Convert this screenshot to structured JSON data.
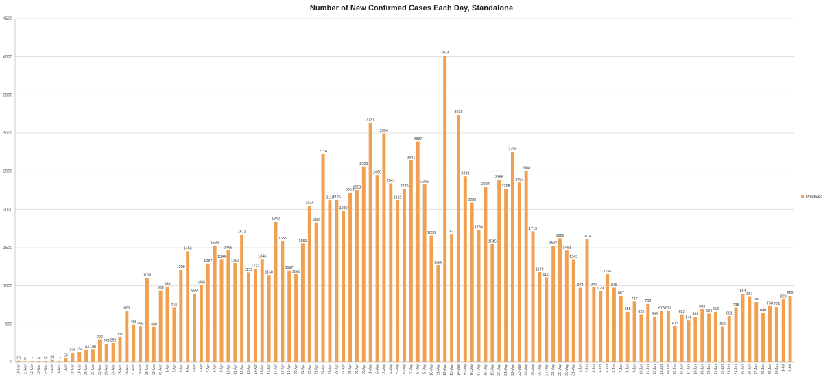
{
  "chart_data": {
    "type": "bar",
    "title": "Number of New Confirmed Cases Each Day, Standalone",
    "xlabel": "",
    "ylabel": "",
    "ylim": [
      0,
      4500
    ],
    "yticks": [
      0,
      500,
      1000,
      1500,
      2000,
      2500,
      3000,
      3500,
      4000,
      4500
    ],
    "grid": true,
    "legend_position": "right",
    "bar_color": "#F0A050",
    "categories": [
      "10-Mar",
      "11-Mar",
      "12-Mar",
      "13-Mar",
      "14-Mar",
      "15-Mar",
      "16-Mar",
      "17-Mar",
      "18-Mar",
      "19-Mar",
      "20-Mar",
      "21-Mar",
      "22-Mar",
      "23-Mar",
      "24-Mar",
      "25-Mar",
      "26-Mar",
      "27-Mar",
      "28-Mar",
      "29-Mar",
      "30-Mar",
      "31-Mar",
      "1-Apr",
      "2-Apr",
      "3-Apr",
      "4-Apr",
      "5-Apr",
      "6-Apr",
      "7-Apr",
      "8-Apr",
      "9-Apr",
      "10-Apr",
      "11-Apr",
      "12-Apr",
      "13-Apr",
      "14-Apr",
      "15-Apr",
      "16-Apr",
      "17-Apr",
      "18-Apr",
      "19-Apr",
      "20-Apr",
      "21-Apr",
      "22-Apr",
      "23-Apr",
      "24-Apr",
      "25-Apr",
      "26-Apr",
      "27-Apr",
      "28-Apr",
      "29-Apr",
      "30-Apr",
      "1-May",
      "2-May",
      "3-May",
      "4-May",
      "5-May",
      "6-May",
      "7-May",
      "8-May",
      "9-May",
      "10-May",
      "11-May",
      "12-May",
      "13-May",
      "14-May",
      "15-May",
      "16-May",
      "17-May",
      "18-May",
      "19-May",
      "20-May",
      "21-May",
      "22-May",
      "23-May",
      "24-May",
      "25-May",
      "26-May",
      "27-May",
      "28-May",
      "29-May",
      "30-May",
      "31-May",
      "1-Jun",
      "2-Jun",
      "3-Jun",
      "4-Jun",
      "5-Jun",
      "6-Jun",
      "7-Jun",
      "8-Jun",
      "9-Jun",
      "10-Jun",
      "11-Jun",
      "12-Jun",
      "13-Jun",
      "14-Jun",
      "15-Jun",
      "16-Jun",
      "17-Jun",
      "18-Jun",
      "19-Jun",
      "20-Jun",
      "21-Jun",
      "22-Jun",
      "23-Jun",
      "24-Jun",
      "25-Jun",
      "26-Jun",
      "27-Jun",
      "28-Jun",
      "29-Jun",
      "30-Jun",
      "1-Jul",
      "2-Jul"
    ],
    "series": [
      {
        "name": "Positives",
        "values": [
          20,
          5,
          7,
          14,
          18,
          29,
          12,
          55,
          126,
          134,
          163,
          168,
          293,
          237,
          252,
          330,
          673,
          488,
          465,
          1105,
          460,
          938,
          986,
          715,
          1209,
          1453,
          899,
          1006,
          1287,
          1529,
          1344,
          1465,
          1293,
          1672,
          1173,
          1222,
          1346,
          1140,
          1842,
          1585,
          1197,
          1151,
          1551,
          2049,
          1826,
          2724,
          2118,
          2126,
          1980,
          2219,
          2253,
          2563,
          3137,
          2450,
          2994,
          2341,
          2122,
          2270,
          2641,
          2887,
          2325,
          1656,
          1266,
          4014,
          1677,
          3239,
          2432,
          2088,
          1734,
          2294,
          1545,
          2388,
          2268,
          2758,
          2352,
          2508,
          1713,
          1178,
          1111,
          1527,
          1622,
          1462,
          1343,
          974,
          1614,
          982,
          929,
          1156,
          975,
          867,
          658,
          797,
          625,
          766,
          595,
          673,
          672,
          473,
          623,
          546,
          593,
          692,
          634,
          658,
          462,
          601,
          715,
          894,
          857,
          786,
          646,
          738,
          724,
          828,
          869
        ]
      }
    ]
  }
}
